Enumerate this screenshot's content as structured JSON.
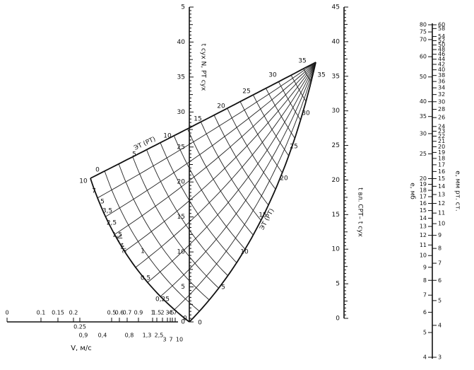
{
  "nomogram": {
    "top_label": "ЭТ (РТ)",
    "wind_label": "V, м/с",
    "right_label": "ЭТ (РТ)",
    "top_edge": [
      "0",
      "5",
      "10",
      "15",
      "20",
      "25",
      "30",
      "35"
    ],
    "right_edge": [
      "35",
      "30",
      "25",
      "20",
      "15",
      "10",
      "5",
      "0"
    ],
    "wind_edge": [
      "10",
      "7",
      "5",
      "3,5",
      "2,5",
      "1,5",
      "1",
      "0,5",
      "0,25",
      "0"
    ]
  },
  "dry_scale": {
    "title": "t сух  N, РТ сух",
    "ticks": [
      "5",
      "40",
      "35",
      "30",
      "25",
      "20",
      "15",
      "10",
      "5",
      "0"
    ]
  },
  "wet_scale": {
    "title": "t вл. СРТ– t сух",
    "ticks": [
      "45",
      "40",
      "35",
      "30",
      "25",
      "20",
      "15",
      "10",
      "5",
      "0"
    ]
  },
  "vapor_scale": {
    "title_mb": "e, мб",
    "title_mm": "e, мм рт. ст.",
    "mb_ticks": [
      80,
      75,
      70,
      60,
      50,
      40,
      35,
      30,
      25,
      20,
      19,
      18,
      17,
      16,
      15,
      14,
      13,
      12,
      11,
      10,
      9,
      8,
      7,
      6,
      5,
      4
    ],
    "mm_ticks": [
      60,
      58,
      54,
      52,
      50,
      48,
      46,
      44,
      42,
      40,
      38,
      36,
      34,
      32,
      30,
      28,
      26,
      24,
      23,
      22,
      21,
      20,
      19,
      18,
      17,
      16,
      15,
      14,
      13,
      12,
      11,
      10,
      9,
      8,
      7,
      6,
      5,
      4,
      3
    ]
  },
  "wind_scale": {
    "title": "V, м/с",
    "top_ticks": [
      "0",
      "0.1",
      "0.15",
      "0.2",
      "0.25",
      "0.5",
      "0.6",
      "0.7",
      "0.9",
      "1",
      "1.5",
      "2",
      "3",
      "4",
      "5",
      "7"
    ],
    "bottom_ticks": [
      "0,9",
      "0,4",
      "0,8",
      "1,3",
      "2,5",
      "3",
      "7",
      "10"
    ]
  }
}
